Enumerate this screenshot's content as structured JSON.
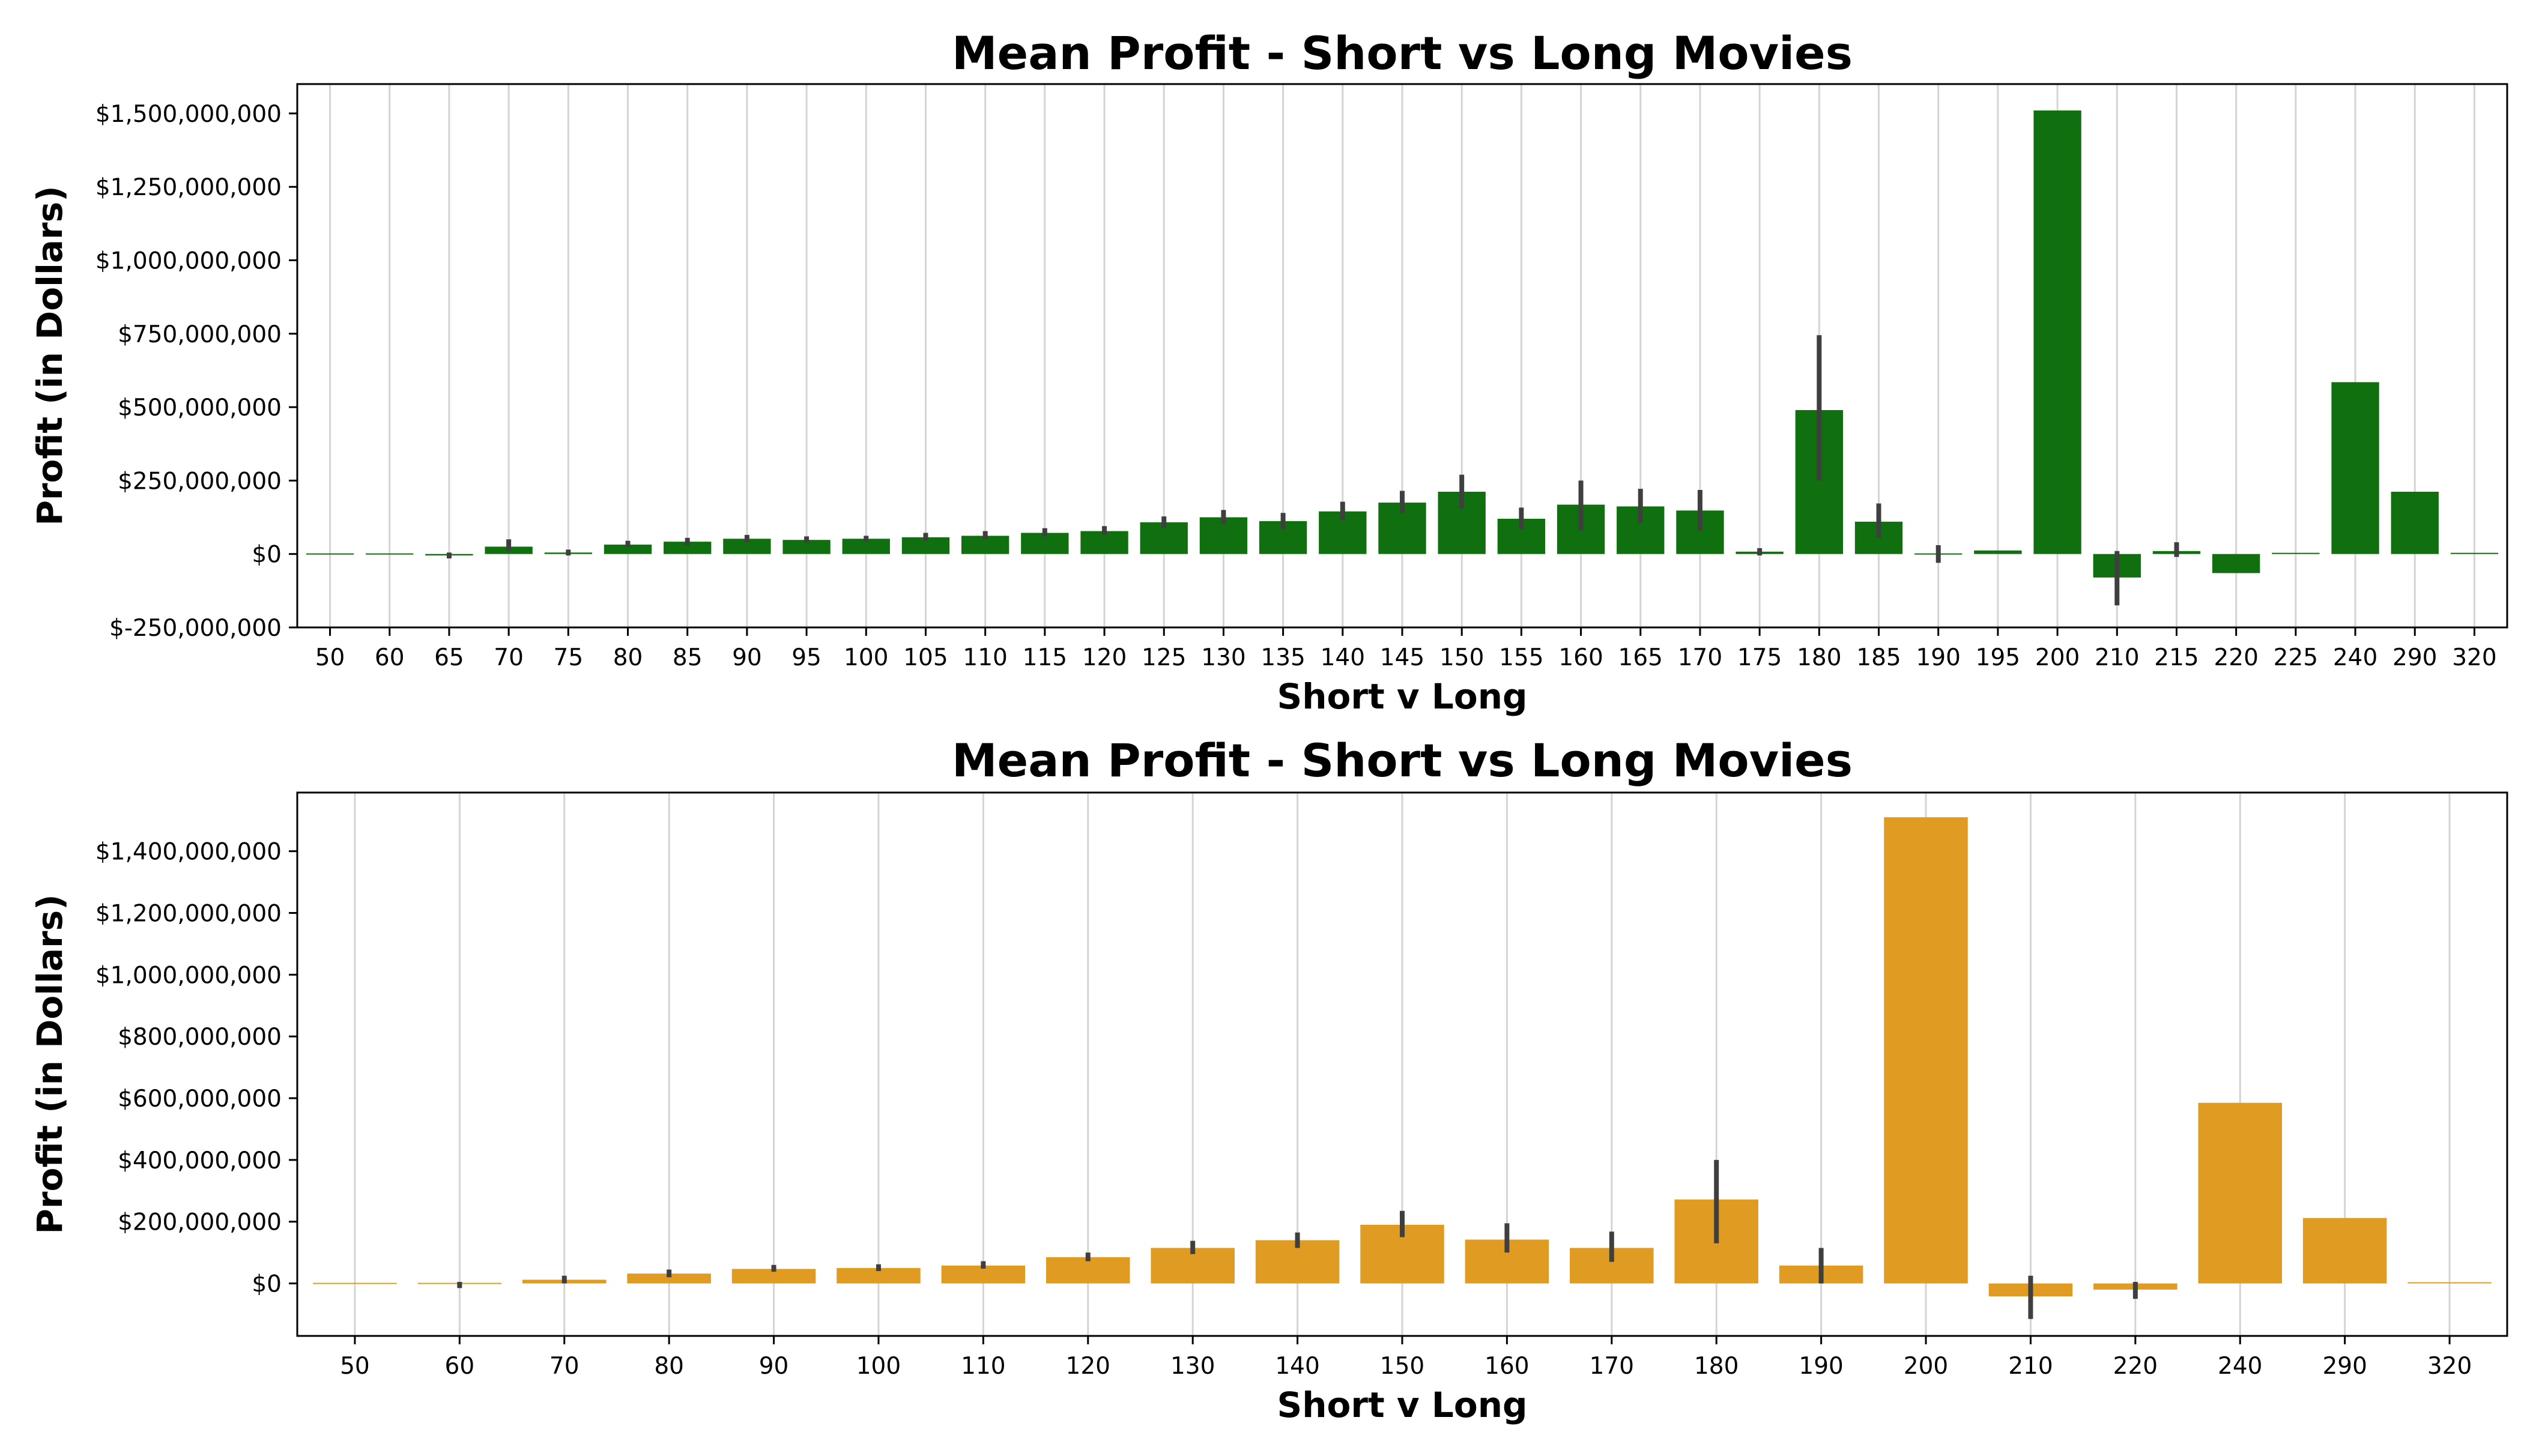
{
  "chart_data": [
    {
      "type": "bar",
      "title": "Mean Profit - Short vs Long Movies",
      "xlabel": "Short v Long",
      "ylabel": "Profit (in Dollars)",
      "color": "#107010",
      "ylim": [
        -250000000,
        1600000000
      ],
      "yticks": [
        -250000000,
        0,
        250000000,
        500000000,
        750000000,
        1000000000,
        1250000000,
        1500000000
      ],
      "ytick_labels": [
        "$-250,000,000",
        "$0",
        "$250,000,000",
        "$500,000,000",
        "$750,000,000",
        "$1,000,000,000",
        "$1,250,000,000",
        "$1,500,000,000"
      ],
      "grid": "vertical",
      "categories": [
        "50",
        "60",
        "65",
        "70",
        "75",
        "80",
        "85",
        "90",
        "95",
        "100",
        "105",
        "110",
        "115",
        "120",
        "125",
        "130",
        "135",
        "140",
        "145",
        "150",
        "155",
        "160",
        "165",
        "170",
        "175",
        "180",
        "185",
        "190",
        "195",
        "200",
        "210",
        "215",
        "220",
        "225",
        "240",
        "290",
        "320"
      ],
      "values": [
        0,
        0,
        -5000000,
        25000000,
        5000000,
        32000000,
        42000000,
        52000000,
        48000000,
        52000000,
        57000000,
        62000000,
        72000000,
        78000000,
        108000000,
        125000000,
        112000000,
        145000000,
        175000000,
        212000000,
        120000000,
        168000000,
        162000000,
        148000000,
        8000000,
        490000000,
        110000000,
        0,
        12000000,
        1510000000,
        -80000000,
        10000000,
        -65000000,
        2000000,
        585000000,
        212000000,
        2000000
      ],
      "error_low": [
        null,
        null,
        -15000000,
        10000000,
        -5000000,
        22000000,
        30000000,
        40000000,
        38000000,
        42000000,
        45000000,
        50000000,
        60000000,
        65000000,
        90000000,
        102000000,
        85000000,
        115000000,
        140000000,
        155000000,
        85000000,
        80000000,
        105000000,
        80000000,
        -5000000,
        250000000,
        55000000,
        -30000000,
        null,
        null,
        -175000000,
        -10000000,
        null,
        null,
        null,
        null,
        null
      ],
      "error_high": [
        null,
        null,
        5000000,
        50000000,
        15000000,
        45000000,
        55000000,
        65000000,
        60000000,
        62000000,
        72000000,
        78000000,
        88000000,
        95000000,
        128000000,
        150000000,
        140000000,
        178000000,
        215000000,
        270000000,
        158000000,
        250000000,
        222000000,
        218000000,
        20000000,
        745000000,
        172000000,
        30000000,
        null,
        null,
        10000000,
        40000000,
        null,
        null,
        null,
        null,
        null
      ]
    },
    {
      "type": "bar",
      "title": "Mean Profit - Short vs Long Movies",
      "xlabel": "Short v Long",
      "ylabel": "Profit (in Dollars)",
      "color": "#e09c22",
      "ylim": [
        -170000000,
        1590000000
      ],
      "yticks": [
        0,
        200000000,
        400000000,
        600000000,
        800000000,
        1000000000,
        1200000000,
        1400000000
      ],
      "ytick_labels": [
        "$0",
        "$200,000,000",
        "$400,000,000",
        "$600,000,000",
        "$800,000,000",
        "$1,000,000,000",
        "$1,200,000,000",
        "$1,400,000,000"
      ],
      "grid": "vertical",
      "categories": [
        "50",
        "60",
        "70",
        "80",
        "90",
        "100",
        "110",
        "120",
        "130",
        "140",
        "150",
        "160",
        "170",
        "180",
        "190",
        "200",
        "210",
        "220",
        "240",
        "290",
        "320"
      ],
      "values": [
        0,
        -3000000,
        12000000,
        32000000,
        47000000,
        50000000,
        58000000,
        85000000,
        115000000,
        140000000,
        190000000,
        142000000,
        115000000,
        272000000,
        58000000,
        1510000000,
        -42000000,
        -20000000,
        585000000,
        212000000,
        2000000
      ],
      "error_low": [
        null,
        -15000000,
        0,
        20000000,
        38000000,
        40000000,
        48000000,
        72000000,
        95000000,
        115000000,
        150000000,
        100000000,
        70000000,
        130000000,
        0,
        null,
        -115000000,
        -50000000,
        null,
        null,
        null
      ],
      "error_high": [
        null,
        5000000,
        25000000,
        45000000,
        60000000,
        62000000,
        72000000,
        100000000,
        138000000,
        165000000,
        235000000,
        195000000,
        168000000,
        400000000,
        115000000,
        null,
        25000000,
        5000000,
        null,
        null,
        null
      ]
    }
  ]
}
